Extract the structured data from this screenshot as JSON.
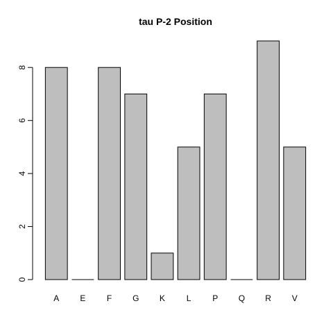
{
  "chart_data": {
    "type": "bar",
    "title": "tau P-2 Position",
    "xlabel": "",
    "ylabel": "",
    "categories": [
      "A",
      "E",
      "F",
      "G",
      "K",
      "L",
      "P",
      "Q",
      "R",
      "V"
    ],
    "values": [
      8,
      0,
      8,
      7,
      1,
      5,
      7,
      0,
      9,
      5
    ],
    "ylim": [
      0,
      9
    ],
    "yticks": [
      0,
      2,
      4,
      6,
      8
    ],
    "grid": false,
    "legend": "none",
    "bar_color": "#bebebe",
    "border_color": "#000000"
  }
}
